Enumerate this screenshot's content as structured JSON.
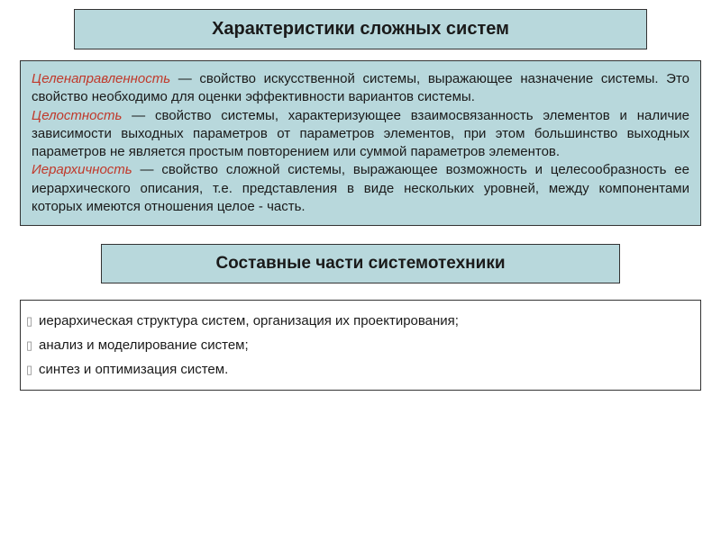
{
  "colors": {
    "box_bg": "#b8d8dc",
    "border": "#333333",
    "text": "#1a1a1a",
    "term": "#c0392b",
    "page_bg": "#ffffff"
  },
  "typography": {
    "title_fontsize_pt": 15,
    "body_fontsize_pt": 11,
    "font_family": "Arial"
  },
  "title": "Характеристики сложных систем",
  "definitions": [
    {
      "term": "Целенаправленность",
      "text": " — свойство искусственной системы, выражающее назначение системы. Это свойство необходимо для оценки эффективности вариантов системы."
    },
    {
      "term": "Целостность",
      "text": " — свойство системы, характеризующее взаимосвязанность элементов и наличие зависимости выходных параметров от параметров элементов, при этом большинство выходных параметров не является простым повторением или суммой параметров элементов."
    },
    {
      "term": "Иерархичность",
      "text": " — свойство сложной системы, выражающее возможность и целесообразность ее иерархического описания, т.е. представления в виде нескольких уровней, между компонентами которых имеются отношения целое - часть."
    }
  ],
  "subtitle": "Составные части системотехники",
  "bullets": [
    "иерархическая структура систем, организация их проектирования;",
    "анализ и моделирование систем;",
    "синтез и оптимизация систем."
  ]
}
